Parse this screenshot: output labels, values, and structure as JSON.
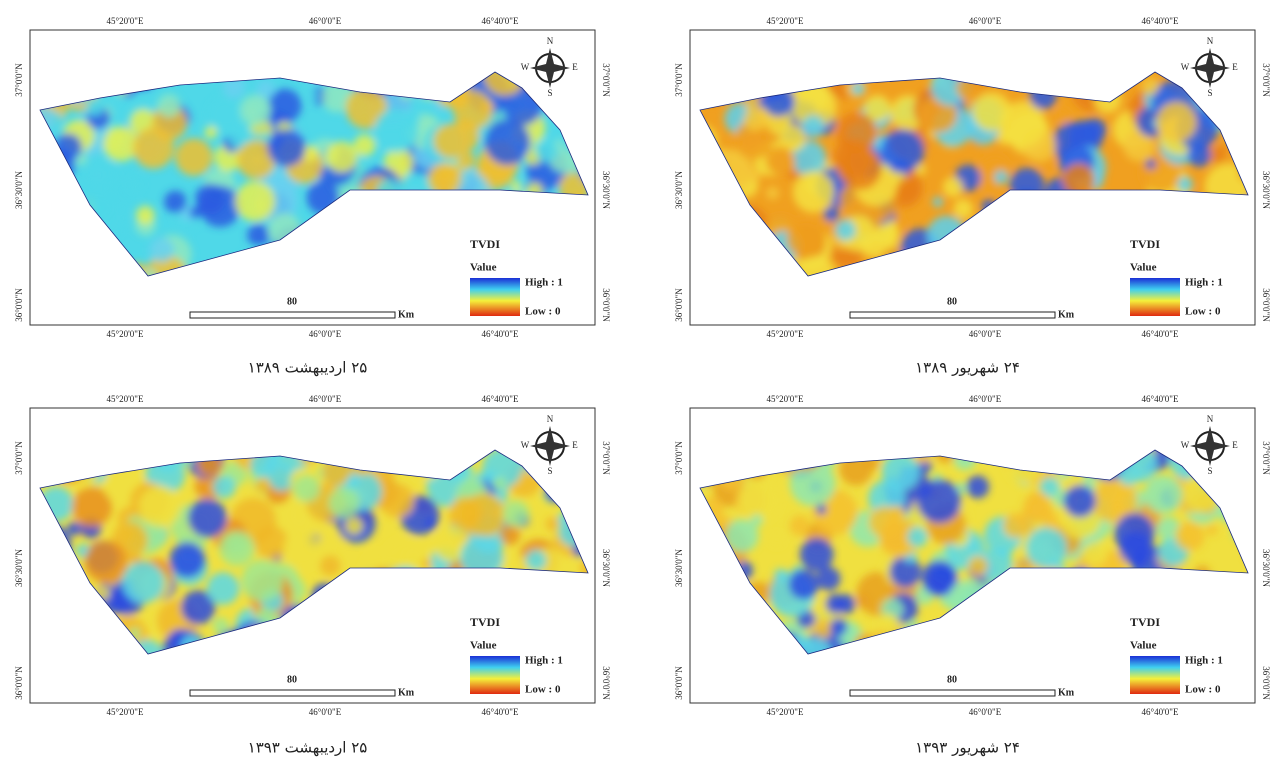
{
  "panels": [
    {
      "caption": "۲۵ اردیبهشت ۱۳۸۹"
    },
    {
      "caption": "۲۴ شهریور ۱۳۸۹"
    },
    {
      "caption": "۲۵ اردیبهشت ۱۳۹۳"
    },
    {
      "caption": "۲۴ شهریور ۱۳۹۳"
    }
  ],
  "longitudes": [
    "45°20'0\"E",
    "46°0'0\"E",
    "46°40'0\"E"
  ],
  "latitudes": [
    "37°0'0\"N",
    "36°30'0\"N",
    "36°0'0\"N"
  ],
  "legend": {
    "title": "TVDI",
    "subtitle": "Value",
    "high": "High : 1",
    "low": "Low : 0"
  },
  "scale": {
    "distance": 80,
    "unit": "Km"
  },
  "compass": {
    "north": "N",
    "south": "S",
    "east": "E",
    "west": "W"
  }
}
